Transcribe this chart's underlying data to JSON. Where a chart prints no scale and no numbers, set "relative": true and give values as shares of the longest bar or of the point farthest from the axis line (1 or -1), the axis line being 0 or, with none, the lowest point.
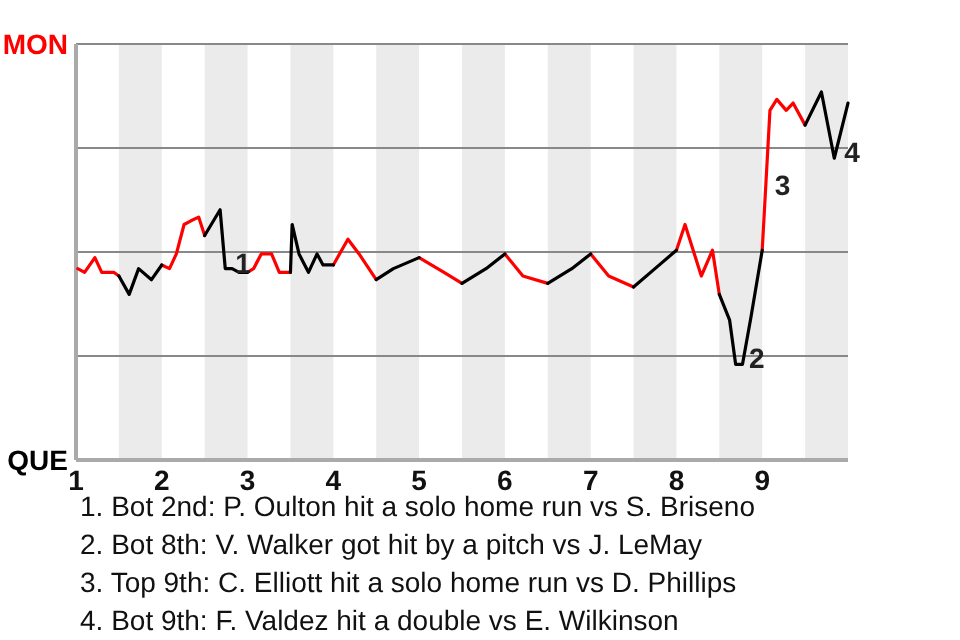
{
  "chart_data": {
    "type": "line",
    "relative": true,
    "xlim": [
      1,
      10
    ],
    "xticks": [
      1,
      2,
      3,
      4,
      5,
      6,
      7,
      8,
      9
    ],
    "grid": "y",
    "marker": "none",
    "line_style": "solid",
    "bands": [
      {
        "axis": "x",
        "from": 1.5,
        "to": 2,
        "color": "#ebebeb"
      },
      {
        "axis": "x",
        "from": 2.5,
        "to": 3,
        "color": "#ebebeb"
      },
      {
        "axis": "x",
        "from": 3.5,
        "to": 4,
        "color": "#ebebeb"
      },
      {
        "axis": "x",
        "from": 4.5,
        "to": 5,
        "color": "#ebebeb"
      },
      {
        "axis": "x",
        "from": 5.5,
        "to": 6,
        "color": "#ebebeb"
      },
      {
        "axis": "x",
        "from": 6.5,
        "to": 7,
        "color": "#ebebeb"
      },
      {
        "axis": "x",
        "from": 7.5,
        "to": 8,
        "color": "#ebebeb"
      },
      {
        "axis": "x",
        "from": 8.5,
        "to": 9,
        "color": "#ebebeb"
      },
      {
        "axis": "x",
        "from": 9.5,
        "to": 10,
        "color": "#ebebeb"
      }
    ],
    "series": [
      {
        "name": "MON",
        "color": "#ff0000",
        "x": [
          1.02,
          1.1,
          1.22,
          1.3,
          1.44,
          1.5,
          null,
          2,
          2.09,
          2.17,
          2.26,
          2.34,
          2.43,
          2.5,
          null,
          3,
          3.07,
          3.16,
          3.28,
          3.37,
          3.5,
          null,
          4,
          4.17,
          4.3,
          4.5,
          null,
          5,
          5.29,
          5.5,
          null,
          6,
          6.21,
          6.5,
          null,
          7,
          7.21,
          7.5,
          null,
          8,
          8.1,
          8.29,
          8.42,
          8.5,
          null,
          9,
          9.09,
          9.17,
          9.28,
          9.36,
          9.5
        ],
        "values": [
          0.52,
          0.51,
          0.55,
          0.51,
          0.51,
          0.5,
          null,
          0.53,
          0.52,
          0.56,
          0.64,
          0.65,
          0.66,
          0.61,
          null,
          0.51,
          0.52,
          0.56,
          0.56,
          0.51,
          0.51,
          null,
          0.53,
          0.6,
          0.56,
          0.49,
          null,
          0.55,
          0.51,
          0.48,
          null,
          0.56,
          0.5,
          0.48,
          null,
          0.56,
          0.5,
          0.47,
          null,
          0.57,
          0.64,
          0.5,
          0.57,
          0.45,
          null,
          0.57,
          0.95,
          0.98,
          0.95,
          0.97,
          0.91
        ]
      },
      {
        "name": "QUE",
        "color": "#000000",
        "x": [
          1.5,
          1.62,
          1.73,
          1.88,
          2,
          null,
          2.5,
          2.68,
          2.74,
          2.82,
          2.9,
          3,
          null,
          3.5,
          3.52,
          3.6,
          3.71,
          3.81,
          3.88,
          4,
          null,
          4.5,
          4.7,
          5,
          null,
          5.5,
          5.78,
          6,
          null,
          6.5,
          6.78,
          7,
          null,
          7.5,
          7.75,
          8,
          null,
          8.5,
          8.62,
          8.69,
          8.77,
          8.87,
          9,
          null,
          9.5,
          9.69,
          9.84,
          10
        ],
        "values": [
          0.5,
          0.45,
          0.52,
          0.49,
          0.53,
          null,
          0.61,
          0.68,
          0.52,
          0.52,
          0.51,
          0.51,
          null,
          0.51,
          0.64,
          0.56,
          0.51,
          0.56,
          0.53,
          0.53,
          null,
          0.49,
          0.52,
          0.55,
          null,
          0.48,
          0.52,
          0.56,
          null,
          0.48,
          0.52,
          0.56,
          null,
          0.47,
          0.52,
          0.57,
          null,
          0.45,
          0.38,
          0.26,
          0.26,
          0.39,
          0.57,
          null,
          0.91,
          1.0,
          0.82,
          0.97
        ]
      }
    ],
    "annotations": [
      {
        "text": "1",
        "x": 2.74,
        "y": 0.52
      },
      {
        "text": "2",
        "x": 8.73,
        "y": 0.26
      },
      {
        "text": "3",
        "x": 9.03,
        "y": 0.73
      },
      {
        "text": "4",
        "x": 9.84,
        "y": 0.82
      },
      "1. Bot 2nd: P. Oulton hit a solo home run vs S. Briseno",
      "2. Bot 8th: V. Walker got hit by a pitch vs J. LeMay",
      "3. Top 9th: C. Elliott hit a solo home run vs D. Phillips",
      "4. Bot 9th: F. Valdez hit a double vs E. Wilkinson"
    ]
  }
}
